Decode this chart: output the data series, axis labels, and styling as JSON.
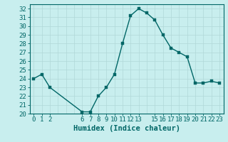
{
  "x": [
    0,
    1,
    2,
    6,
    7,
    8,
    9,
    10,
    11,
    12,
    13,
    14,
    15,
    16,
    17,
    18,
    19,
    20,
    21,
    22,
    23
  ],
  "y": [
    24,
    24.5,
    23,
    20.2,
    20.2,
    22,
    23,
    24.5,
    28,
    31.2,
    32,
    31.5,
    30.7,
    29,
    27.5,
    27,
    26.5,
    23.5,
    23.5,
    23.7,
    23.5
  ],
  "xlabel": "Humidex (Indice chaleur)",
  "xlim": [
    -0.5,
    23.5
  ],
  "ylim": [
    20,
    32.5
  ],
  "yticks": [
    20,
    21,
    22,
    23,
    24,
    25,
    26,
    27,
    28,
    29,
    30,
    31,
    32
  ],
  "xtick_positions": [
    0,
    1,
    2,
    6,
    7,
    8,
    9,
    10,
    11,
    12,
    13,
    15,
    16,
    17,
    18,
    19,
    20,
    21,
    22,
    23
  ],
  "xtick_labels": [
    "0",
    "1",
    "2",
    "6",
    "7",
    "8",
    "9",
    "10",
    "11",
    "12",
    "13",
    "15",
    "16",
    "17",
    "18",
    "19",
    "20",
    "21",
    "22",
    "23"
  ],
  "line_color": "#006666",
  "marker_color": "#006666",
  "bg_color": "#c8eeee",
  "grid_color": "#b0d8d8",
  "axis_color": "#006666",
  "tick_label_color": "#006666",
  "xlabel_color": "#006666",
  "xlabel_fontsize": 7.5,
  "tick_fontsize": 6.5,
  "line_width": 1.0,
  "marker_size": 2.5
}
